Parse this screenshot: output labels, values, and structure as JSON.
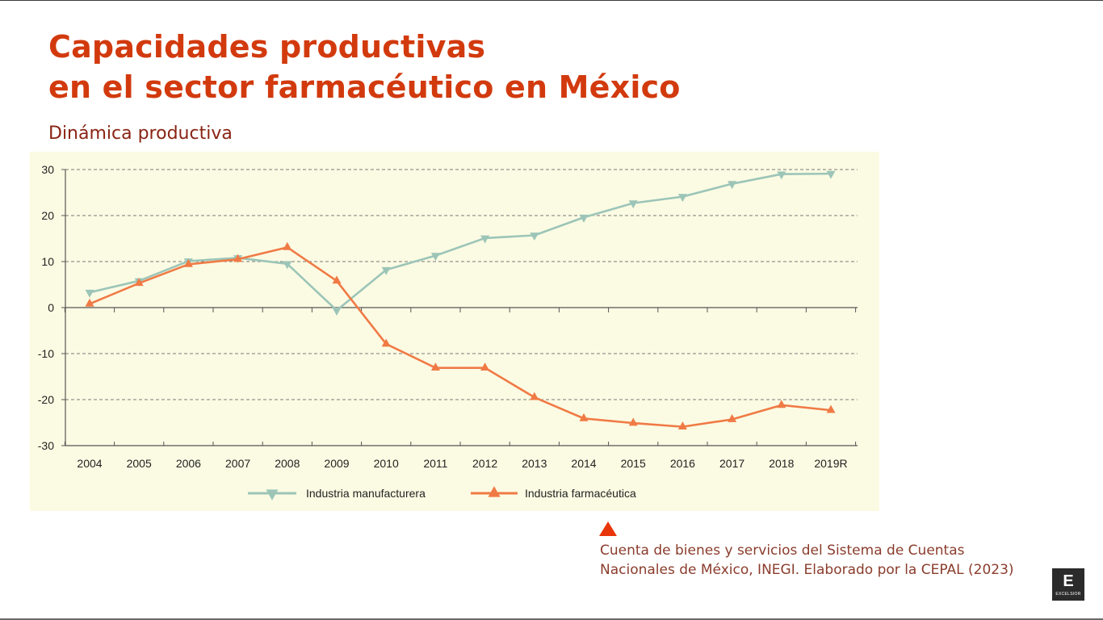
{
  "slide": {
    "title_line_1": "Capacidades productivas",
    "title_line_2": "en el sector farmacéutico en México",
    "subtitle": "Dinámica productiva",
    "source_line_1": "Cuenta de bienes y servicios del Sistema de Cuentas",
    "source_line_2": "Nacionales de México, INEGI. Elaborado por la CEPAL (2023)",
    "brand_letter": "E",
    "brand_word": "EXCELSIOR"
  },
  "colors": {
    "title": "#d23a0e",
    "subtitle": "#8a2414",
    "panel_background": "#fbfbe3",
    "manufacturera": "#9cc5b8",
    "farmaceutica": "#f07a45",
    "source_marker": "#e8350a"
  },
  "chart_data": {
    "type": "line",
    "categories": [
      "2004",
      "2005",
      "2006",
      "2007",
      "2008",
      "2009",
      "2010",
      "2011",
      "2012",
      "2013",
      "2014",
      "2015",
      "2016",
      "2017",
      "2018",
      "2019R"
    ],
    "series": [
      {
        "name": "Industria manufacturera",
        "marker": "triangle-down",
        "color": "#9cc5b8",
        "values": [
          3.3,
          5.8,
          10.1,
          10.8,
          9.5,
          -0.6,
          8.2,
          11.3,
          15.1,
          15.7,
          19.6,
          22.7,
          24.1,
          26.9,
          29.0,
          29.1
        ]
      },
      {
        "name": "Industria farmacéutica",
        "marker": "triangle-up",
        "color": "#f07a45",
        "values": [
          0.8,
          5.3,
          9.4,
          10.5,
          13.1,
          5.8,
          -7.9,
          -13.1,
          -13.1,
          -19.5,
          -24.1,
          -25.1,
          -25.9,
          -24.3,
          -21.2,
          -22.3
        ]
      }
    ],
    "yticks": [
      30,
      20,
      10,
      0,
      -10,
      -20,
      -30
    ],
    "ylim": [
      -30,
      30
    ],
    "grid": "horizontal dashed",
    "legend_position": "bottom-center"
  }
}
